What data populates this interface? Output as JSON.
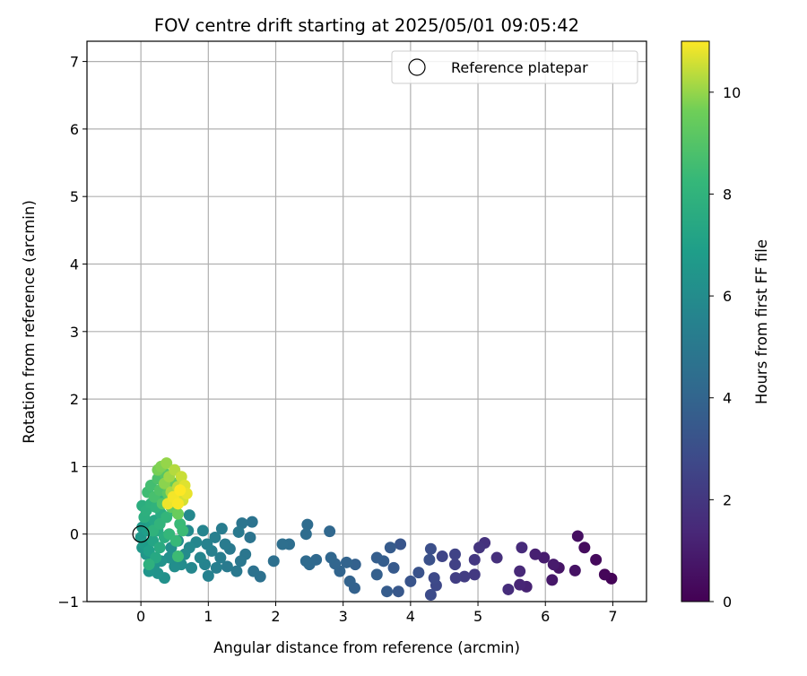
{
  "chart_data": {
    "type": "scatter",
    "title": "FOV centre drift starting at 2025/05/01 09:05:42",
    "xlabel": "Angular distance from reference (arcmin)",
    "ylabel": "Rotation from reference (arcmin)",
    "xlim": [
      -0.8,
      7.5
    ],
    "ylim": [
      -1,
      7.3
    ],
    "xticks": [
      0,
      1,
      2,
      3,
      4,
      5,
      6,
      7
    ],
    "yticks": [
      -1,
      0,
      1,
      2,
      3,
      4,
      5,
      6,
      7
    ],
    "grid": true,
    "legend": {
      "position": "top-right",
      "entries": [
        "Reference platepar"
      ]
    },
    "reference_point": {
      "x": 0,
      "y": 0
    },
    "colorbar": {
      "label": "Hours from first FF file",
      "range": [
        0,
        11
      ],
      "ticks": [
        0,
        2,
        4,
        6,
        8,
        10
      ],
      "colormap": "viridis"
    },
    "series": [
      {
        "points": [
          [
            6.98,
            -0.66,
            0.1
          ],
          [
            6.88,
            -0.6,
            0.2
          ],
          [
            6.75,
            -0.38,
            0.3
          ],
          [
            6.58,
            -0.2,
            0.4
          ],
          [
            6.48,
            -0.03,
            0.5
          ],
          [
            6.44,
            -0.54,
            0.6
          ],
          [
            6.2,
            -0.5,
            0.7
          ],
          [
            6.1,
            -0.68,
            0.8
          ],
          [
            6.12,
            -0.45,
            0.9
          ],
          [
            5.98,
            -0.35,
            1.0
          ],
          [
            5.85,
            -0.3,
            1.1
          ],
          [
            5.72,
            -0.78,
            1.2
          ],
          [
            5.62,
            -0.75,
            1.3
          ],
          [
            5.62,
            -0.55,
            1.4
          ],
          [
            5.65,
            -0.2,
            1.5
          ],
          [
            5.45,
            -0.82,
            1.6
          ],
          [
            5.28,
            -0.35,
            1.7
          ],
          [
            5.1,
            -0.13,
            1.8
          ],
          [
            5.02,
            -0.2,
            1.9
          ],
          [
            4.95,
            -0.38,
            2.0
          ],
          [
            4.95,
            -0.6,
            2.1
          ],
          [
            4.8,
            -0.63,
            2.2
          ],
          [
            4.67,
            -0.65,
            2.3
          ],
          [
            4.66,
            -0.45,
            2.4
          ],
          [
            4.66,
            -0.3,
            2.5
          ],
          [
            4.47,
            -0.33,
            2.6
          ],
          [
            4.38,
            -0.76,
            2.7
          ],
          [
            4.35,
            -0.65,
            2.8
          ],
          [
            4.3,
            -0.9,
            2.9
          ],
          [
            4.3,
            -0.22,
            3.0
          ],
          [
            4.28,
            -0.38,
            3.1
          ],
          [
            4.12,
            -0.57,
            3.2
          ],
          [
            4.0,
            -0.7,
            3.25
          ],
          [
            3.85,
            -0.15,
            3.3
          ],
          [
            3.82,
            -0.85,
            3.4
          ],
          [
            3.75,
            -0.5,
            3.5
          ],
          [
            3.7,
            -0.2,
            3.55
          ],
          [
            3.65,
            -0.85,
            3.6
          ],
          [
            3.6,
            -0.4,
            3.65
          ],
          [
            3.5,
            -0.35,
            3.7
          ],
          [
            3.5,
            -0.6,
            3.75
          ],
          [
            3.18,
            -0.45,
            3.8
          ],
          [
            3.17,
            -0.8,
            3.85
          ],
          [
            3.1,
            -0.7,
            3.9
          ],
          [
            3.05,
            -0.42,
            3.95
          ],
          [
            2.95,
            -0.55,
            4.0
          ],
          [
            2.88,
            -0.44,
            4.05
          ],
          [
            2.82,
            -0.35,
            4.1
          ],
          [
            2.8,
            0.04,
            4.15
          ],
          [
            2.6,
            -0.38,
            4.2
          ],
          [
            2.5,
            -0.45,
            4.25
          ],
          [
            2.45,
            -0.4,
            4.3
          ],
          [
            2.47,
            0.14,
            4.35
          ],
          [
            2.45,
            0.0,
            4.4
          ],
          [
            2.2,
            -0.15,
            4.45
          ],
          [
            2.1,
            -0.15,
            4.5
          ],
          [
            1.97,
            -0.4,
            4.55
          ],
          [
            1.77,
            -0.63,
            4.6
          ],
          [
            1.67,
            -0.55,
            4.65
          ],
          [
            1.65,
            0.18,
            4.7
          ],
          [
            1.62,
            -0.05,
            4.75
          ],
          [
            1.5,
            0.16,
            4.8
          ],
          [
            1.55,
            -0.3,
            4.85
          ],
          [
            1.48,
            -0.4,
            4.9
          ],
          [
            1.42,
            -0.55,
            4.95
          ],
          [
            1.45,
            0.03,
            5.0
          ],
          [
            1.32,
            -0.22,
            5.05
          ],
          [
            1.28,
            -0.48,
            5.1
          ],
          [
            1.25,
            -0.15,
            5.15
          ],
          [
            1.2,
            0.08,
            5.2
          ],
          [
            1.18,
            -0.35,
            5.25
          ],
          [
            1.12,
            -0.5,
            5.3
          ],
          [
            1.1,
            -0.05,
            5.35
          ],
          [
            1.05,
            -0.25,
            5.4
          ],
          [
            1.0,
            -0.62,
            5.45
          ],
          [
            0.98,
            -0.15,
            5.5
          ],
          [
            0.95,
            -0.45,
            5.55
          ],
          [
            0.92,
            0.05,
            5.6
          ],
          [
            0.88,
            -0.35,
            5.65
          ],
          [
            0.82,
            -0.12,
            5.7
          ],
          [
            0.75,
            -0.5,
            5.75
          ],
          [
            0.72,
            0.28,
            5.8
          ],
          [
            0.72,
            -0.2,
            5.85
          ],
          [
            0.7,
            0.05,
            5.9
          ],
          [
            0.65,
            -0.3,
            5.95
          ],
          [
            0.6,
            -0.45,
            6.0
          ],
          [
            0.55,
            -0.1,
            6.05
          ],
          [
            0.5,
            -0.48,
            6.1
          ],
          [
            0.45,
            -0.2,
            6.15
          ],
          [
            0.42,
            -0.35,
            6.2
          ],
          [
            0.35,
            -0.65,
            6.25
          ],
          [
            0.3,
            -0.4,
            6.3
          ],
          [
            0.25,
            -0.58,
            6.35
          ],
          [
            0.2,
            -0.45,
            6.4
          ],
          [
            0.12,
            -0.55,
            6.45
          ],
          [
            0.08,
            -0.3,
            6.5
          ],
          [
            0.02,
            -0.2,
            6.55
          ],
          [
            0.0,
            -0.05,
            6.6
          ],
          [
            0.02,
            0.1,
            6.7
          ],
          [
            0.05,
            -0.15,
            6.8
          ],
          [
            0.1,
            0.05,
            6.9
          ],
          [
            0.12,
            -0.25,
            7.0
          ],
          [
            0.15,
            0.15,
            7.1
          ],
          [
            0.18,
            -0.1,
            7.2
          ],
          [
            0.2,
            0.2,
            7.3
          ],
          [
            0.22,
            -0.35,
            7.4
          ],
          [
            0.25,
            0.05,
            7.5
          ],
          [
            0.28,
            -0.2,
            7.55
          ],
          [
            0.3,
            0.3,
            7.6
          ],
          [
            0.35,
            -0.05,
            7.65
          ],
          [
            0.02,
            0.42,
            7.7
          ],
          [
            0.05,
            0.25,
            7.75
          ],
          [
            0.08,
            0.35,
            7.8
          ],
          [
            0.12,
            -0.45,
            7.85
          ],
          [
            0.15,
            0.45,
            7.9
          ],
          [
            0.18,
            0.05,
            7.95
          ],
          [
            0.22,
            0.4,
            8.0
          ],
          [
            0.28,
            0.15,
            8.05
          ],
          [
            0.32,
            0.55,
            8.1
          ],
          [
            0.38,
            0.25,
            8.15
          ],
          [
            0.42,
            0.0,
            8.2
          ],
          [
            0.48,
            0.35,
            8.25
          ],
          [
            0.52,
            -0.1,
            8.3
          ],
          [
            0.58,
            0.15,
            8.35
          ],
          [
            0.62,
            0.05,
            8.4
          ],
          [
            0.55,
            -0.33,
            8.45
          ],
          [
            0.1,
            0.62,
            8.5
          ],
          [
            0.15,
            0.72,
            8.6
          ],
          [
            0.2,
            0.55,
            8.7
          ],
          [
            0.25,
            0.82,
            8.8
          ],
          [
            0.28,
            0.65,
            8.9
          ],
          [
            0.32,
            0.45,
            9.0
          ],
          [
            0.35,
            0.9,
            9.1
          ],
          [
            0.4,
            0.6,
            9.2
          ],
          [
            0.45,
            0.4,
            9.3
          ],
          [
            0.5,
            0.75,
            9.4
          ],
          [
            0.55,
            0.3,
            9.5
          ],
          [
            0.6,
            0.55,
            9.6
          ],
          [
            0.25,
            0.95,
            9.7
          ],
          [
            0.3,
            1.0,
            9.8
          ],
          [
            0.35,
            0.75,
            9.9
          ],
          [
            0.38,
            1.05,
            10.0
          ],
          [
            0.42,
            0.85,
            10.1
          ],
          [
            0.45,
            0.62,
            10.2
          ],
          [
            0.5,
            0.95,
            10.3
          ],
          [
            0.55,
            0.7,
            10.4
          ],
          [
            0.6,
            0.85,
            10.5
          ],
          [
            0.62,
            0.5,
            10.6
          ],
          [
            0.65,
            0.72,
            10.7
          ],
          [
            0.68,
            0.6,
            10.8
          ],
          [
            0.4,
            0.45,
            10.85
          ],
          [
            0.48,
            0.55,
            10.9
          ],
          [
            0.55,
            0.45,
            10.95
          ],
          [
            0.58,
            0.65,
            11.0
          ]
        ]
      }
    ]
  }
}
